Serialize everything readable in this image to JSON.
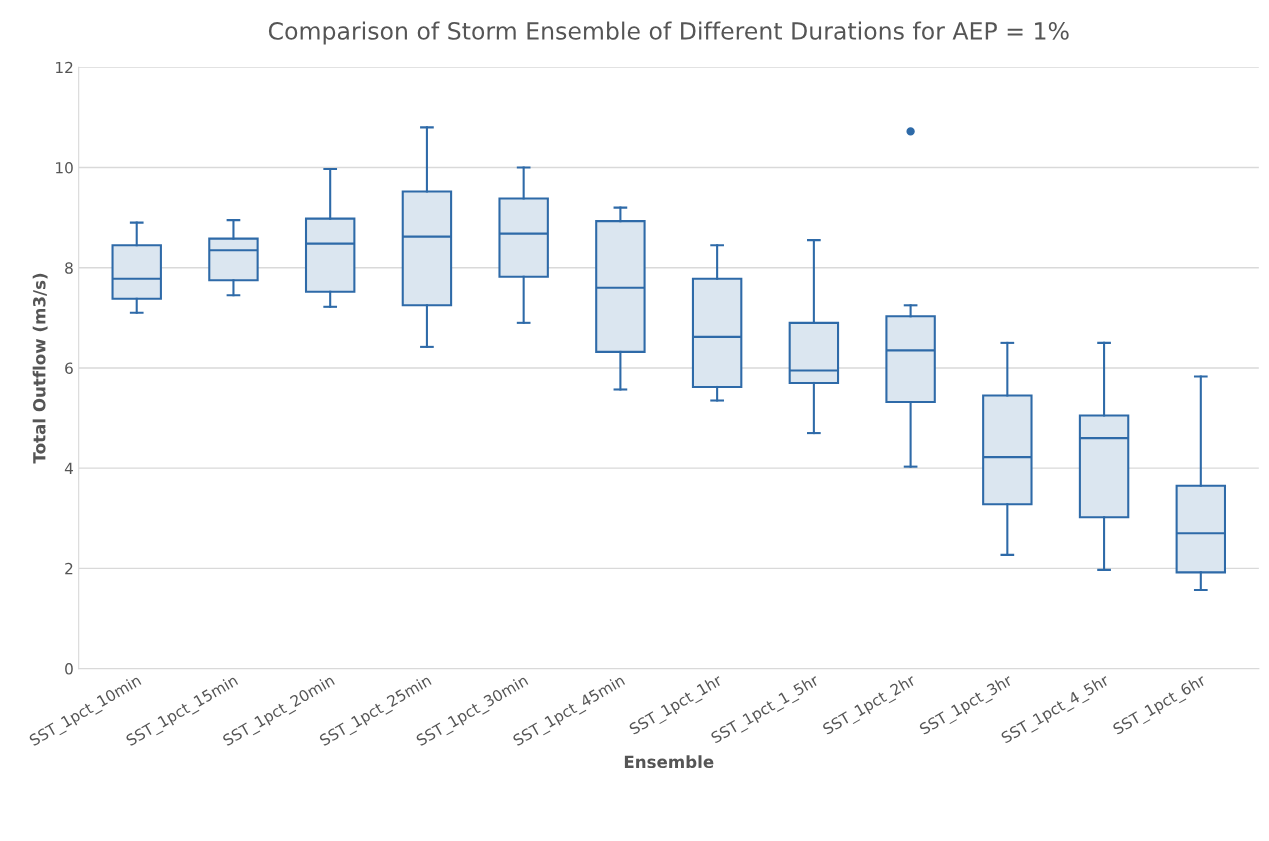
{
  "chart_data": {
    "type": "box",
    "title": "Comparison of Storm Ensemble of Different Durations for AEP = 1%",
    "xlabel": "Ensemble",
    "ylabel": "Total Outflow (m3/s)",
    "categories": [
      "SST_1pct_10min",
      "SST_1pct_15min",
      "SST_1pct_20min",
      "SST_1pct_25min",
      "SST_1pct_30min",
      "SST_1pct_45min",
      "SST_1pct_1hr",
      "SST_1pct_1_5hr",
      "SST_1pct_2hr",
      "SST_1pct_3hr",
      "SST_1pct_4_5hr",
      "SST_1pct_6hr"
    ],
    "series": [
      {
        "color": "#2e6aa8",
        "boxes": [
          {
            "low": 7.1,
            "q1": 7.38,
            "median": 7.78,
            "q3": 8.45,
            "high": 8.9
          },
          {
            "low": 7.45,
            "q1": 7.75,
            "median": 8.35,
            "q3": 8.58,
            "high": 8.95
          },
          {
            "low": 7.22,
            "q1": 7.52,
            "median": 8.48,
            "q3": 8.98,
            "high": 9.97
          },
          {
            "low": 6.42,
            "q1": 7.25,
            "median": 8.62,
            "q3": 9.52,
            "high": 10.8
          },
          {
            "low": 6.9,
            "q1": 7.82,
            "median": 8.68,
            "q3": 9.38,
            "high": 10.0
          },
          {
            "low": 5.57,
            "q1": 6.32,
            "median": 7.6,
            "q3": 8.93,
            "high": 9.2
          },
          {
            "low": 5.35,
            "q1": 5.62,
            "median": 6.62,
            "q3": 7.78,
            "high": 8.45
          },
          {
            "low": 4.7,
            "q1": 5.7,
            "median": 5.95,
            "q3": 6.9,
            "high": 8.55
          },
          {
            "low": 4.03,
            "q1": 5.32,
            "median": 6.35,
            "q3": 7.03,
            "high": 7.25,
            "outliers": [
              10.72
            ]
          },
          {
            "low": 2.27,
            "q1": 3.28,
            "median": 4.22,
            "q3": 5.45,
            "high": 6.5
          },
          {
            "low": 1.97,
            "q1": 3.02,
            "median": 4.6,
            "q3": 5.05,
            "high": 6.5
          },
          {
            "low": 1.57,
            "q1": 1.92,
            "median": 2.7,
            "q3": 3.65,
            "high": 5.83
          }
        ]
      }
    ],
    "ylim": [
      0,
      12
    ],
    "yticks": [
      0,
      2,
      4,
      6,
      8,
      10,
      12
    ],
    "grid": "y"
  }
}
